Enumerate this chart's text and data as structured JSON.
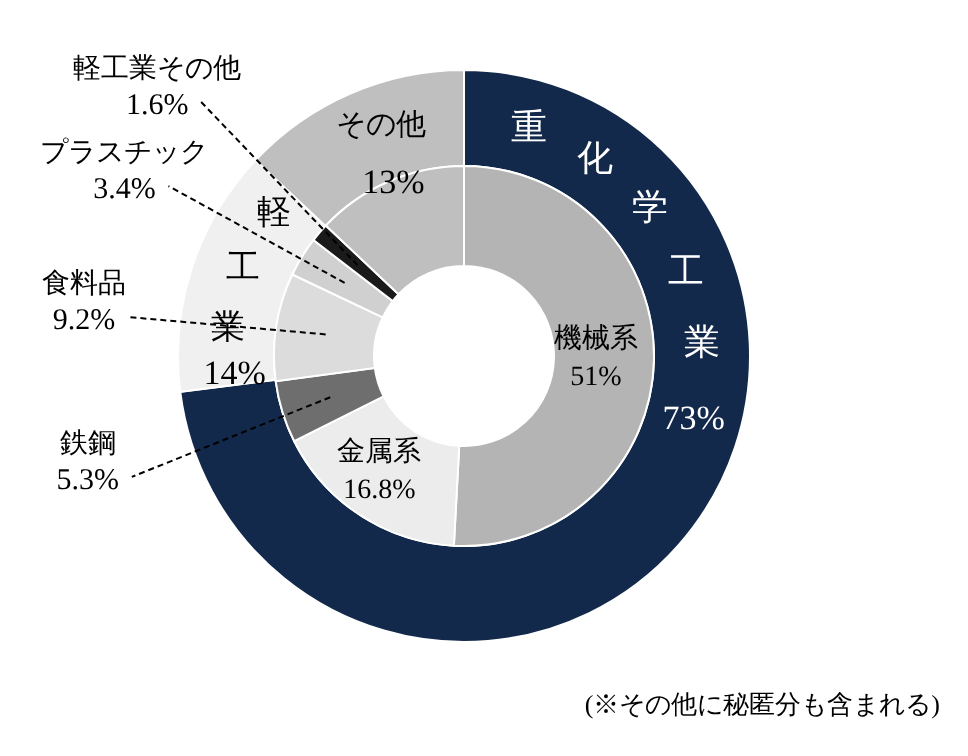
{
  "chart_data": [
    {
      "type": "donut",
      "categories": [
        "重化学工業",
        "軽工業",
        "その他"
      ],
      "values": [
        73,
        14,
        13
      ],
      "colors": [
        "#13294b",
        "#f0f0f0",
        "#bfbfbf"
      ],
      "value_labels": [
        "73%",
        "14%",
        "13%"
      ],
      "annotations": [
        "(※その他に秘匿分も含まれる)"
      ]
    },
    {
      "type": "donut",
      "categories": [
        "機械系",
        "金属系",
        "鉄鋼",
        "食料品",
        "プラスチック",
        "軽工業その他",
        null
      ],
      "values": [
        51,
        16.8,
        5.3,
        9.2,
        3.4,
        1.6,
        13
      ],
      "colors": [
        "#b4b4b4",
        "#ececec",
        "#6e6e6e",
        "#dcdcdc",
        "#d0d0d0",
        "#1a1a1a",
        "#bfbfbf"
      ],
      "value_labels": [
        "51%",
        "16.8%",
        "5.3%",
        "9.2%",
        "3.4%",
        "1.6%",
        null
      ]
    }
  ]
}
